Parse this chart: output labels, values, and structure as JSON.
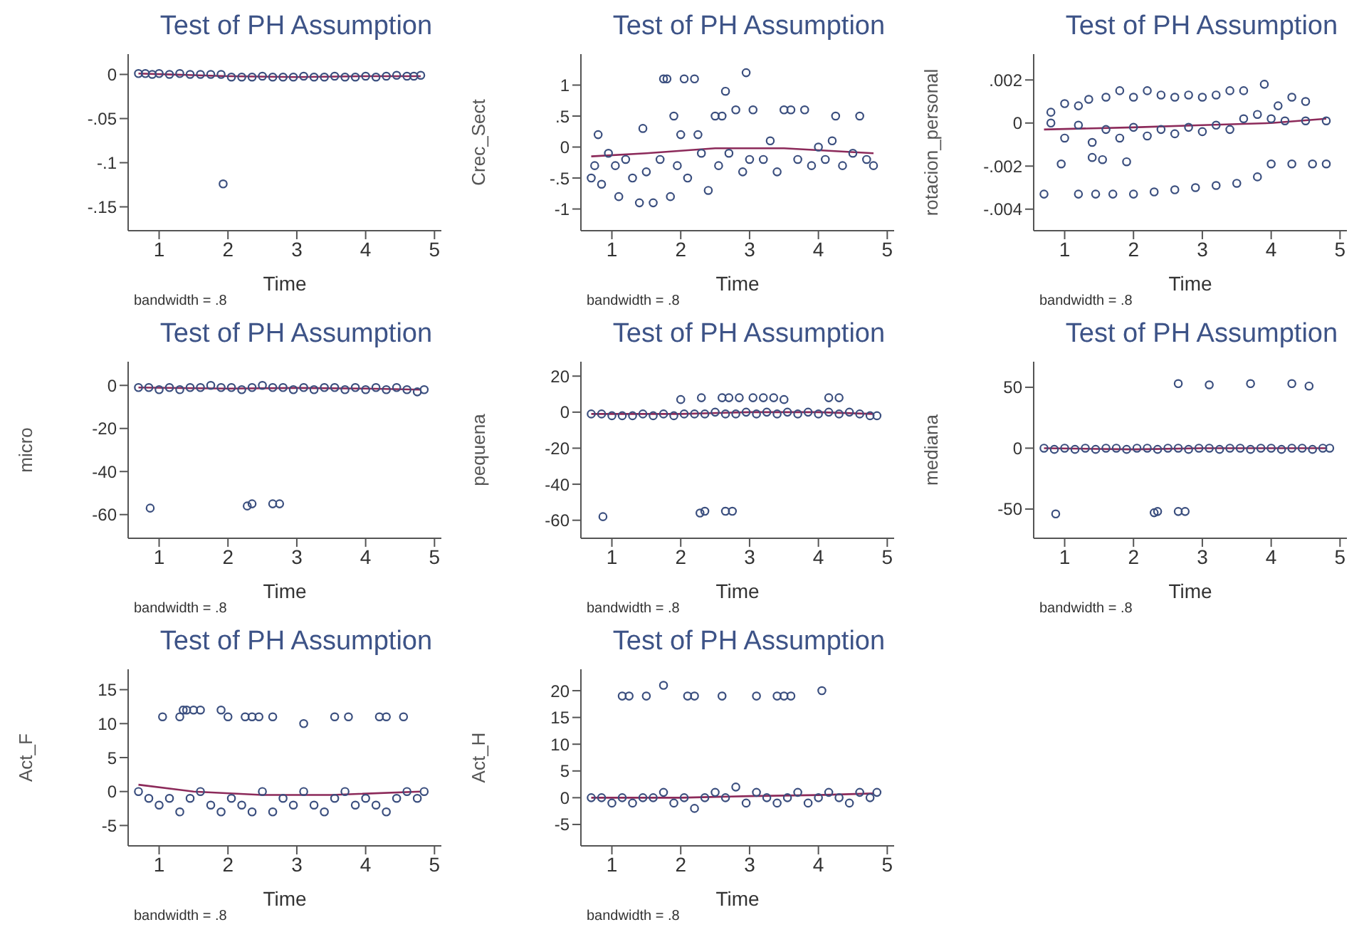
{
  "chart_data": [
    {
      "type": "scatter",
      "title": "Test of PH Assumption",
      "xlabel": "Time",
      "annotations": [
        "bandwidth = .8"
      ],
      "xlim": [
        0.55,
        5.1
      ],
      "xticks": [
        1,
        2,
        3,
        4,
        5
      ],
      "ylim": [
        -0.177,
        0.023
      ],
      "yticks": [
        {
          "value": -0.15,
          "label": "-.15"
        },
        {
          "value": -0.1,
          "label": "-.1"
        },
        {
          "value": -0.05,
          "label": "-.05"
        },
        0
      ],
      "series": [
        {
          "type": "scatter",
          "marker": "circle",
          "color": "#3a4e7e",
          "x": [
            0.7,
            0.8,
            0.9,
            1.0,
            1.15,
            1.3,
            1.45,
            1.6,
            1.75,
            1.9,
            1.93,
            2.05,
            2.2,
            2.35,
            2.5,
            2.65,
            2.8,
            2.95,
            3.1,
            3.25,
            3.4,
            3.55,
            3.7,
            3.85,
            4.0,
            4.15,
            4.3,
            4.45,
            4.6,
            4.7,
            4.8
          ],
          "values": [
            0.001,
            0.001,
            0.0,
            0.001,
            0.0,
            0.001,
            0.0,
            0.0,
            0.0,
            0.0,
            -0.124,
            -0.003,
            -0.003,
            -0.003,
            -0.002,
            -0.003,
            -0.003,
            -0.003,
            -0.002,
            -0.003,
            -0.003,
            -0.002,
            -0.003,
            -0.003,
            -0.002,
            -0.003,
            -0.002,
            -0.001,
            -0.002,
            -0.002,
            -0.001
          ]
        },
        {
          "type": "line",
          "color": "#8c2a5a",
          "x": [
            0.7,
            2,
            3,
            4,
            4.8
          ],
          "values": [
            0.001,
            -0.002,
            -0.003,
            -0.002,
            -0.002
          ]
        }
      ]
    },
    {
      "type": "scatter",
      "title": "Test of PH Assumption",
      "xlabel": "Time",
      "ylabel": "Crec_Sect",
      "annotations": [
        "bandwidth = .8"
      ],
      "xlim": [
        0.55,
        5.1
      ],
      "xticks": [
        1,
        2,
        3,
        4,
        5
      ],
      "ylim": [
        -1.35,
        1.5
      ],
      "yticks": [
        -1,
        {
          "value": -0.5,
          "label": "-.5"
        },
        0,
        {
          "value": 0.5,
          "label": ".5"
        },
        1
      ],
      "series": [
        {
          "type": "scatter",
          "marker": "circle",
          "color": "#3a4e7e",
          "x": [
            0.7,
            0.75,
            0.8,
            0.85,
            0.95,
            1.05,
            1.1,
            1.2,
            1.3,
            1.4,
            1.45,
            1.5,
            1.6,
            1.7,
            1.75,
            1.8,
            1.85,
            1.9,
            1.95,
            2.0,
            2.05,
            2.1,
            2.2,
            2.25,
            2.3,
            2.4,
            2.5,
            2.55,
            2.6,
            2.65,
            2.7,
            2.8,
            2.9,
            2.95,
            3.0,
            3.05,
            3.2,
            3.3,
            3.4,
            3.5,
            3.6,
            3.7,
            3.8,
            3.9,
            4.0,
            4.1,
            4.2,
            4.25,
            4.35,
            4.5,
            4.6,
            4.7,
            4.8
          ],
          "values": [
            -0.5,
            -0.3,
            0.2,
            -0.6,
            -0.1,
            -0.3,
            -0.8,
            -0.2,
            -0.5,
            -0.9,
            0.3,
            -0.4,
            -0.9,
            -0.2,
            1.1,
            1.1,
            -0.8,
            0.5,
            -0.3,
            0.2,
            1.1,
            -0.5,
            1.1,
            0.2,
            -0.1,
            -0.7,
            0.5,
            -0.3,
            0.5,
            0.9,
            -0.1,
            0.6,
            -0.4,
            1.2,
            -0.2,
            0.6,
            -0.2,
            0.1,
            -0.4,
            0.6,
            0.6,
            -0.2,
            0.6,
            -0.3,
            0.0,
            -0.2,
            0.1,
            0.5,
            -0.3,
            -0.1,
            0.5,
            -0.2,
            -0.3
          ]
        },
        {
          "type": "line",
          "color": "#8c2a5a",
          "x": [
            0.7,
            1.5,
            2.5,
            3.5,
            4.8
          ],
          "values": [
            -0.15,
            -0.1,
            -0.02,
            -0.02,
            -0.1
          ]
        }
      ]
    },
    {
      "type": "scatter",
      "title": "Test of PH Assumption",
      "xlabel": "Time",
      "ylabel": "rotacion_personal",
      "annotations": [
        "bandwidth = .8"
      ],
      "xlim": [
        0.55,
        5.1
      ],
      "xticks": [
        1,
        2,
        3,
        4,
        5
      ],
      "ylim": [
        -0.005,
        0.0032
      ],
      "yticks": [
        {
          "value": -0.004,
          "label": "-.004"
        },
        {
          "value": -0.002,
          "label": "-.002"
        },
        0,
        {
          "value": 0.002,
          "label": ".002"
        }
      ],
      "series": [
        {
          "type": "scatter",
          "marker": "circle",
          "color": "#3a4e7e",
          "x": [
            0.8,
            1.0,
            1.2,
            1.35,
            1.6,
            1.8,
            2.0,
            2.2,
            2.4,
            2.6,
            2.8,
            3.0,
            3.2,
            3.4,
            3.6,
            3.9,
            4.1,
            4.3,
            4.5,
            0.8,
            1.0,
            1.2,
            1.4,
            1.6,
            1.8,
            2.0,
            2.2,
            2.4,
            2.6,
            2.8,
            3.0,
            3.2,
            3.4,
            3.6,
            3.8,
            4.0,
            4.2,
            4.5,
            4.8,
            0.7,
            1.2,
            1.45,
            1.7,
            2.0,
            2.3,
            2.6,
            2.9,
            3.2,
            3.5,
            3.8,
            4.0,
            4.3,
            4.6,
            4.8,
            0.95,
            1.4,
            1.55,
            1.9
          ],
          "values": [
            0.0005,
            0.0009,
            0.0008,
            0.0011,
            0.0012,
            0.0015,
            0.0012,
            0.0015,
            0.0013,
            0.0012,
            0.0013,
            0.0012,
            0.0013,
            0.0015,
            0.0015,
            0.0018,
            0.0008,
            0.0012,
            0.001,
            0.0,
            -0.0007,
            -0.0001,
            -0.0009,
            -0.0003,
            -0.0007,
            -0.0002,
            -0.0006,
            -0.0003,
            -0.0005,
            -0.0002,
            -0.0004,
            -0.0001,
            -0.0003,
            0.0002,
            0.0004,
            0.0002,
            0.0001,
            0.0001,
            0.0001,
            -0.0033,
            -0.0033,
            -0.0033,
            -0.0033,
            -0.0033,
            -0.0032,
            -0.0031,
            -0.003,
            -0.0029,
            -0.0028,
            -0.0025,
            -0.0019,
            -0.0019,
            -0.0019,
            -0.0019,
            -0.0019,
            -0.0016,
            -0.0017,
            -0.0018
          ]
        },
        {
          "type": "line",
          "color": "#8c2a5a",
          "x": [
            0.7,
            2,
            3,
            4,
            4.8
          ],
          "values": [
            -0.0003,
            -0.0002,
            -0.0001,
            0.0,
            0.0002
          ]
        }
      ]
    },
    {
      "type": "scatter",
      "title": "Test of PH Assumption",
      "xlabel": "Time",
      "ylabel": "micro",
      "annotations": [
        "bandwidth = .8"
      ],
      "xlim": [
        0.55,
        5.1
      ],
      "xticks": [
        1,
        2,
        3,
        4,
        5
      ],
      "ylim": [
        -71,
        11
      ],
      "yticks": [
        -60,
        -40,
        -20,
        0
      ],
      "series": [
        {
          "type": "scatter",
          "marker": "circle",
          "color": "#3a4e7e",
          "x": [
            0.7,
            0.85,
            1.0,
            1.15,
            1.3,
            1.45,
            1.6,
            1.75,
            1.9,
            2.05,
            2.2,
            2.35,
            2.5,
            2.65,
            2.8,
            2.95,
            3.1,
            3.25,
            3.4,
            3.55,
            3.7,
            3.85,
            4.0,
            4.15,
            4.3,
            4.45,
            4.6,
            4.75,
            4.85,
            0.87,
            2.28,
            2.35,
            2.65,
            2.75
          ],
          "values": [
            -1,
            -1,
            -2,
            -1,
            -2,
            -1,
            -1,
            0,
            -1,
            -1,
            -2,
            -1,
            0,
            -1,
            -1,
            -2,
            -1,
            -2,
            -1,
            -1,
            -2,
            -1,
            -2,
            -1,
            -2,
            -1,
            -2,
            -3,
            -2,
            -57,
            -56,
            -55,
            -55,
            -55
          ]
        },
        {
          "type": "line",
          "color": "#8c2a5a",
          "x": [
            0.7,
            2,
            3,
            4,
            4.8
          ],
          "values": [
            -1,
            -1.5,
            -1.2,
            -1.5,
            -2
          ]
        }
      ]
    },
    {
      "type": "scatter",
      "title": "Test of PH Assumption",
      "xlabel": "Time",
      "ylabel": "pequena",
      "annotations": [
        "bandwidth = .8"
      ],
      "xlim": [
        0.55,
        5.1
      ],
      "xticks": [
        1,
        2,
        3,
        4,
        5
      ],
      "ylim": [
        -70,
        28
      ],
      "yticks": [
        -60,
        -40,
        -20,
        0,
        20
      ],
      "series": [
        {
          "type": "scatter",
          "marker": "circle",
          "color": "#3a4e7e",
          "x": [
            0.7,
            0.85,
            1.0,
            1.15,
            1.3,
            1.45,
            1.6,
            1.75,
            1.9,
            2.05,
            2.2,
            2.35,
            2.5,
            2.65,
            2.8,
            2.95,
            3.1,
            3.25,
            3.4,
            3.55,
            3.7,
            3.85,
            4.0,
            4.15,
            4.3,
            4.45,
            4.6,
            4.75,
            4.85,
            2.0,
            2.3,
            2.6,
            2.7,
            2.85,
            3.05,
            3.2,
            3.35,
            3.5,
            4.15,
            4.3,
            0.87,
            2.28,
            2.35,
            2.65,
            2.75
          ],
          "values": [
            -1,
            -1,
            -2,
            -2,
            -2,
            -1,
            -2,
            -1,
            -2,
            -1,
            -1,
            -1,
            0,
            -1,
            -1,
            0,
            -1,
            0,
            -1,
            0,
            -1,
            0,
            -1,
            0,
            -1,
            0,
            -1,
            -2,
            -2,
            7,
            8,
            8,
            8,
            8,
            8,
            8,
            8,
            7,
            8,
            8,
            -58,
            -56,
            -55,
            -55,
            -55
          ]
        },
        {
          "type": "line",
          "color": "#8c2a5a",
          "x": [
            0.7,
            2,
            3,
            4,
            4.8
          ],
          "values": [
            -1,
            -1,
            0,
            0,
            -1
          ]
        }
      ]
    },
    {
      "type": "scatter",
      "title": "Test of PH Assumption",
      "xlabel": "Time",
      "ylabel": "mediana",
      "annotations": [
        "bandwidth = .8"
      ],
      "xlim": [
        0.55,
        5.1
      ],
      "xticks": [
        1,
        2,
        3,
        4,
        5
      ],
      "ylim": [
        -74,
        71
      ],
      "yticks": [
        -50,
        0,
        50
      ],
      "series": [
        {
          "type": "scatter",
          "marker": "circle",
          "color": "#3a4e7e",
          "x": [
            0.7,
            0.85,
            1.0,
            1.15,
            1.3,
            1.45,
            1.6,
            1.75,
            1.9,
            2.05,
            2.2,
            2.35,
            2.5,
            2.65,
            2.8,
            2.95,
            3.1,
            3.25,
            3.4,
            3.55,
            3.7,
            3.85,
            4.0,
            4.15,
            4.3,
            4.45,
            4.6,
            4.75,
            4.85,
            2.65,
            3.1,
            3.7,
            4.3,
            4.55,
            0.87,
            2.3,
            2.35,
            2.65,
            2.75
          ],
          "values": [
            0,
            -1,
            0,
            -1,
            0,
            -1,
            0,
            0,
            -1,
            0,
            0,
            -1,
            0,
            0,
            -1,
            0,
            0,
            -1,
            0,
            0,
            -1,
            0,
            0,
            -1,
            0,
            0,
            -1,
            0,
            0,
            53,
            52,
            53,
            53,
            51,
            -54,
            -53,
            -52,
            -52,
            -52
          ]
        },
        {
          "type": "line",
          "color": "#8c2a5a",
          "x": [
            0.7,
            2,
            3,
            4,
            4.8
          ],
          "values": [
            0,
            -1,
            0,
            0,
            0
          ]
        }
      ]
    },
    {
      "type": "scatter",
      "title": "Test of PH Assumption",
      "xlabel": "Time",
      "ylabel": "Act_F",
      "annotations": [
        "bandwidth = .8"
      ],
      "xlim": [
        0.55,
        5.1
      ],
      "xticks": [
        1,
        2,
        3,
        4,
        5
      ],
      "ylim": [
        -8,
        18
      ],
      "yticks": [
        -5,
        0,
        5,
        10,
        15
      ],
      "series": [
        {
          "type": "scatter",
          "marker": "circle",
          "color": "#3a4e7e",
          "x": [
            0.7,
            0.85,
            1.0,
            1.15,
            1.3,
            1.45,
            1.6,
            1.75,
            1.9,
            2.05,
            2.2,
            2.35,
            2.5,
            2.65,
            2.8,
            2.95,
            3.1,
            3.25,
            3.4,
            3.55,
            3.7,
            3.85,
            4.0,
            4.15,
            4.3,
            4.45,
            4.6,
            4.75,
            4.85,
            1.05,
            1.3,
            1.35,
            1.4,
            1.5,
            1.6,
            1.9,
            2.0,
            2.25,
            2.35,
            2.45,
            2.65,
            3.1,
            3.55,
            3.75,
            4.2,
            4.3,
            4.55
          ],
          "values": [
            0,
            -1,
            -2,
            -1,
            -3,
            -1,
            0,
            -2,
            -3,
            -1,
            -2,
            -3,
            0,
            -3,
            -1,
            -2,
            0,
            -2,
            -3,
            -1,
            0,
            -2,
            -1,
            -2,
            -3,
            -1,
            0,
            -1,
            0,
            11,
            11,
            12,
            12,
            12,
            12,
            12,
            11,
            11,
            11,
            11,
            11,
            10,
            11,
            11,
            11,
            11,
            11
          ]
        },
        {
          "type": "line",
          "color": "#8c2a5a",
          "x": [
            0.7,
            1.5,
            2.5,
            3.5,
            4.8
          ],
          "values": [
            1,
            0,
            -0.5,
            -0.5,
            0
          ]
        }
      ]
    },
    {
      "type": "scatter",
      "title": "Test of PH Assumption",
      "xlabel": "Time",
      "ylabel": "Act_H",
      "annotations": [
        "bandwidth = .8"
      ],
      "xlim": [
        0.55,
        5.1
      ],
      "xticks": [
        1,
        2,
        3,
        4,
        5
      ],
      "ylim": [
        -9,
        24
      ],
      "yticks": [
        -5,
        0,
        5,
        10,
        15,
        20
      ],
      "series": [
        {
          "type": "scatter",
          "marker": "circle",
          "color": "#3a4e7e",
          "x": [
            0.7,
            0.85,
            1.0,
            1.15,
            1.3,
            1.45,
            1.6,
            1.75,
            1.9,
            2.05,
            2.2,
            2.35,
            2.5,
            2.65,
            2.8,
            2.95,
            3.1,
            3.25,
            3.4,
            3.55,
            3.7,
            3.85,
            4.0,
            4.15,
            4.3,
            4.45,
            4.6,
            4.75,
            4.85,
            1.15,
            1.25,
            1.5,
            1.75,
            2.1,
            2.2,
            2.6,
            3.1,
            3.4,
            3.5,
            3.6,
            4.05
          ],
          "values": [
            0,
            0,
            -1,
            0,
            -1,
            0,
            0,
            1,
            -1,
            0,
            -2,
            0,
            1,
            0,
            2,
            -1,
            1,
            0,
            -1,
            0,
            1,
            -1,
            0,
            1,
            0,
            -1,
            1,
            0,
            1,
            19,
            19,
            19,
            21,
            19,
            19,
            19,
            19,
            19,
            19,
            19,
            20
          ]
        },
        {
          "type": "line",
          "color": "#8c2a5a",
          "x": [
            0.7,
            2,
            3,
            4,
            4.8
          ],
          "values": [
            0,
            0,
            0.3,
            0.5,
            0.8
          ]
        }
      ]
    }
  ]
}
